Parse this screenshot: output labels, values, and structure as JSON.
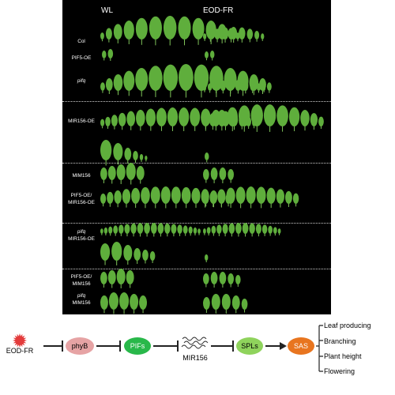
{
  "panel": {
    "columns": [
      "WL",
      "EOD-FR"
    ],
    "rows": [
      {
        "label": "Col",
        "italic": false
      },
      {
        "label": "PIF5-OE",
        "italic": false
      },
      {
        "label": "pifq",
        "italic": true
      },
      {
        "label": "MIR156-OE",
        "italic": false
      },
      {
        "label": "MIM156",
        "italic": false
      },
      {
        "label": "PIF5-OE/",
        "label2": "MIR156-OE",
        "italic": false
      },
      {
        "label": "pifq",
        "label2": "MIR156-OE",
        "italic": true
      },
      {
        "label": "PIF5-OE/",
        "label2": "MIM156",
        "italic": false
      },
      {
        "label": "pifq",
        "label2": "MIM156",
        "italic": true
      }
    ]
  },
  "pathway": {
    "eod": "EOD-FR",
    "phyb": "phyB",
    "pifs": "PIFs",
    "mir": "MIR156",
    "spls": "SPLs",
    "sas": "SAS",
    "outputs": [
      "Leaf producing",
      "Branching",
      "Plant height",
      "Flowering"
    ]
  },
  "colors": {
    "leaf": "#5fae3c",
    "phyb": "#e6a3a4",
    "pifs": "#29b84a",
    "spls": "#8fd35c",
    "sas": "#e8751f",
    "eod": "#e33b3b"
  }
}
